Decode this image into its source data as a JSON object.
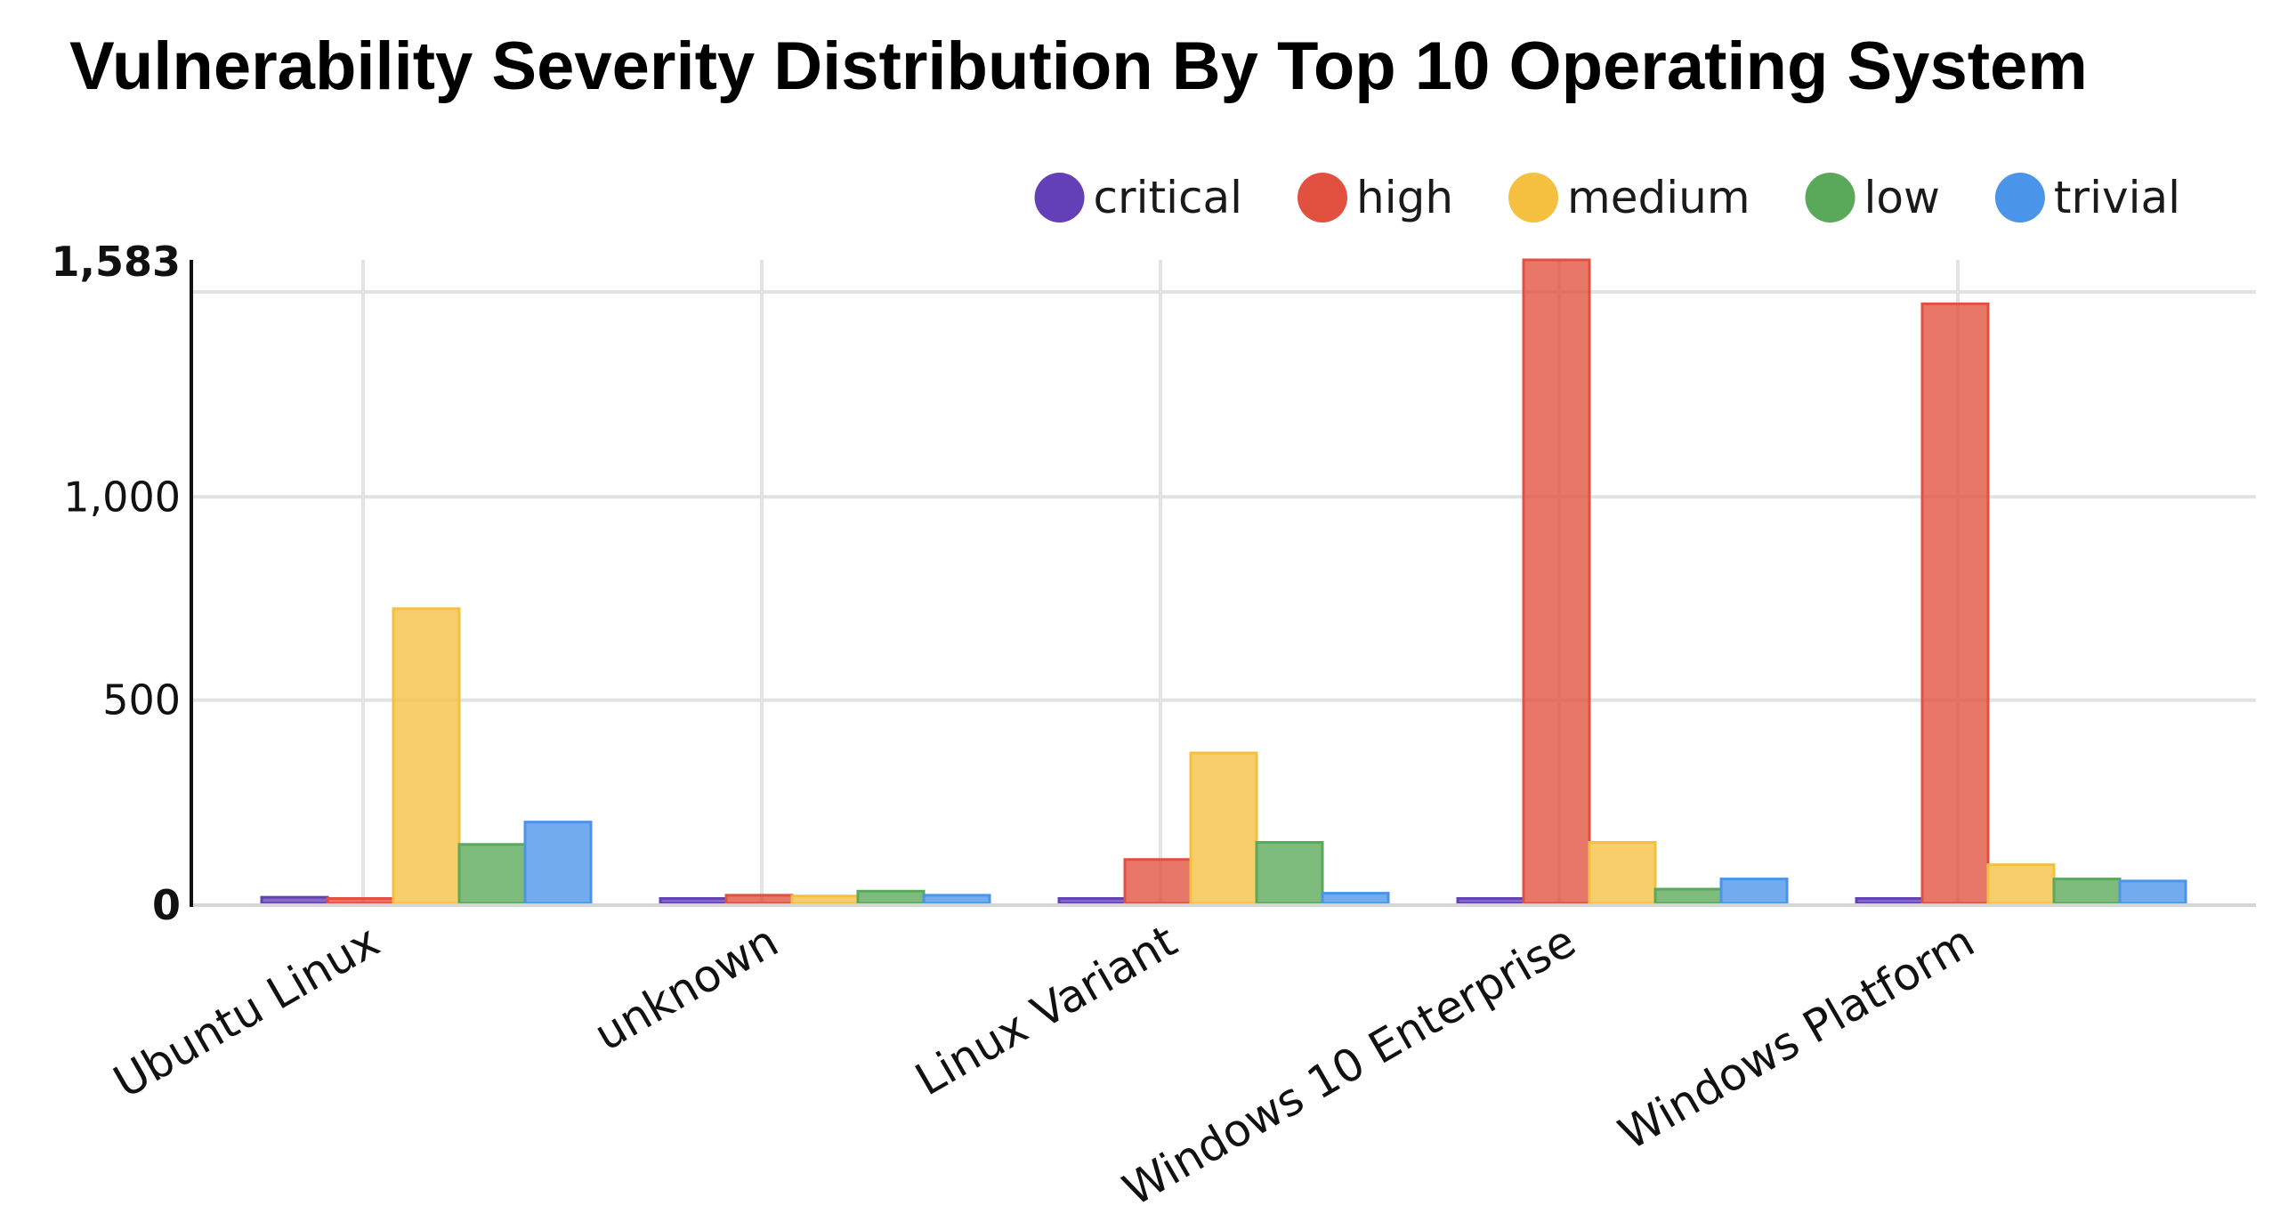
{
  "chart_data": {
    "type": "bar",
    "title": "Vulnerability Severity Distribution By Top 10 Operating System",
    "xlabel": "",
    "ylabel": "",
    "ylim": [
      0,
      1583
    ],
    "y_ticks": [
      {
        "value": 0,
        "label": "0",
        "bold": true
      },
      {
        "value": 500,
        "label": "500",
        "bold": false
      },
      {
        "value": 1000,
        "label": "1,000",
        "bold": false
      },
      {
        "value": 1583,
        "label": "1,583",
        "bold": true
      }
    ],
    "categories": [
      "Ubuntu Linux",
      "unknown",
      "Linux Variant",
      "Windows 10 Enterprise",
      "Windows Platform"
    ],
    "legend_position": "top-right",
    "series": [
      {
        "name": "critical",
        "color": "#6340b8",
        "values": [
          15,
          12,
          12,
          12,
          12
        ]
      },
      {
        "name": "high",
        "color": "#e2503f",
        "values": [
          12,
          20,
          108,
          1583,
          1475
        ]
      },
      {
        "name": "medium",
        "color": "#f5c040",
        "values": [
          725,
          18,
          370,
          150,
          95
        ]
      },
      {
        "name": "low",
        "color": "#5aa95a",
        "values": [
          145,
          30,
          150,
          35,
          60
        ]
      },
      {
        "name": "trivial",
        "color": "#4a95ea",
        "values": [
          200,
          20,
          25,
          60,
          55
        ]
      }
    ]
  }
}
